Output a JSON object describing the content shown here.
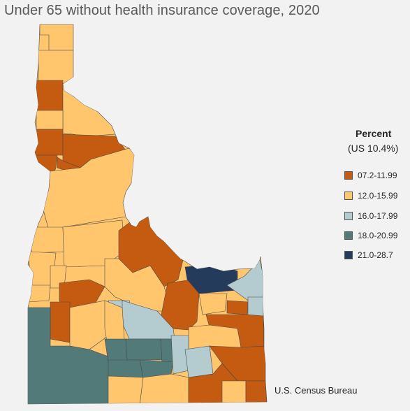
{
  "title": "Under 65 without health insurance coverage, 2020",
  "legend": {
    "title": "Percent",
    "subtitle": "(US 10.4%)",
    "items": [
      {
        "label": "07.2-11.99",
        "color": "#c55a11"
      },
      {
        "label": "12.0-15.99",
        "color": "#ffc66d"
      },
      {
        "label": "16.0-17.99",
        "color": "#b4cbd0"
      },
      {
        "label": "18.0-20.99",
        "color": "#527a78"
      },
      {
        "label": "21.0-28.7",
        "color": "#243b5b"
      }
    ]
  },
  "source": "U.S. Census Bureau"
}
